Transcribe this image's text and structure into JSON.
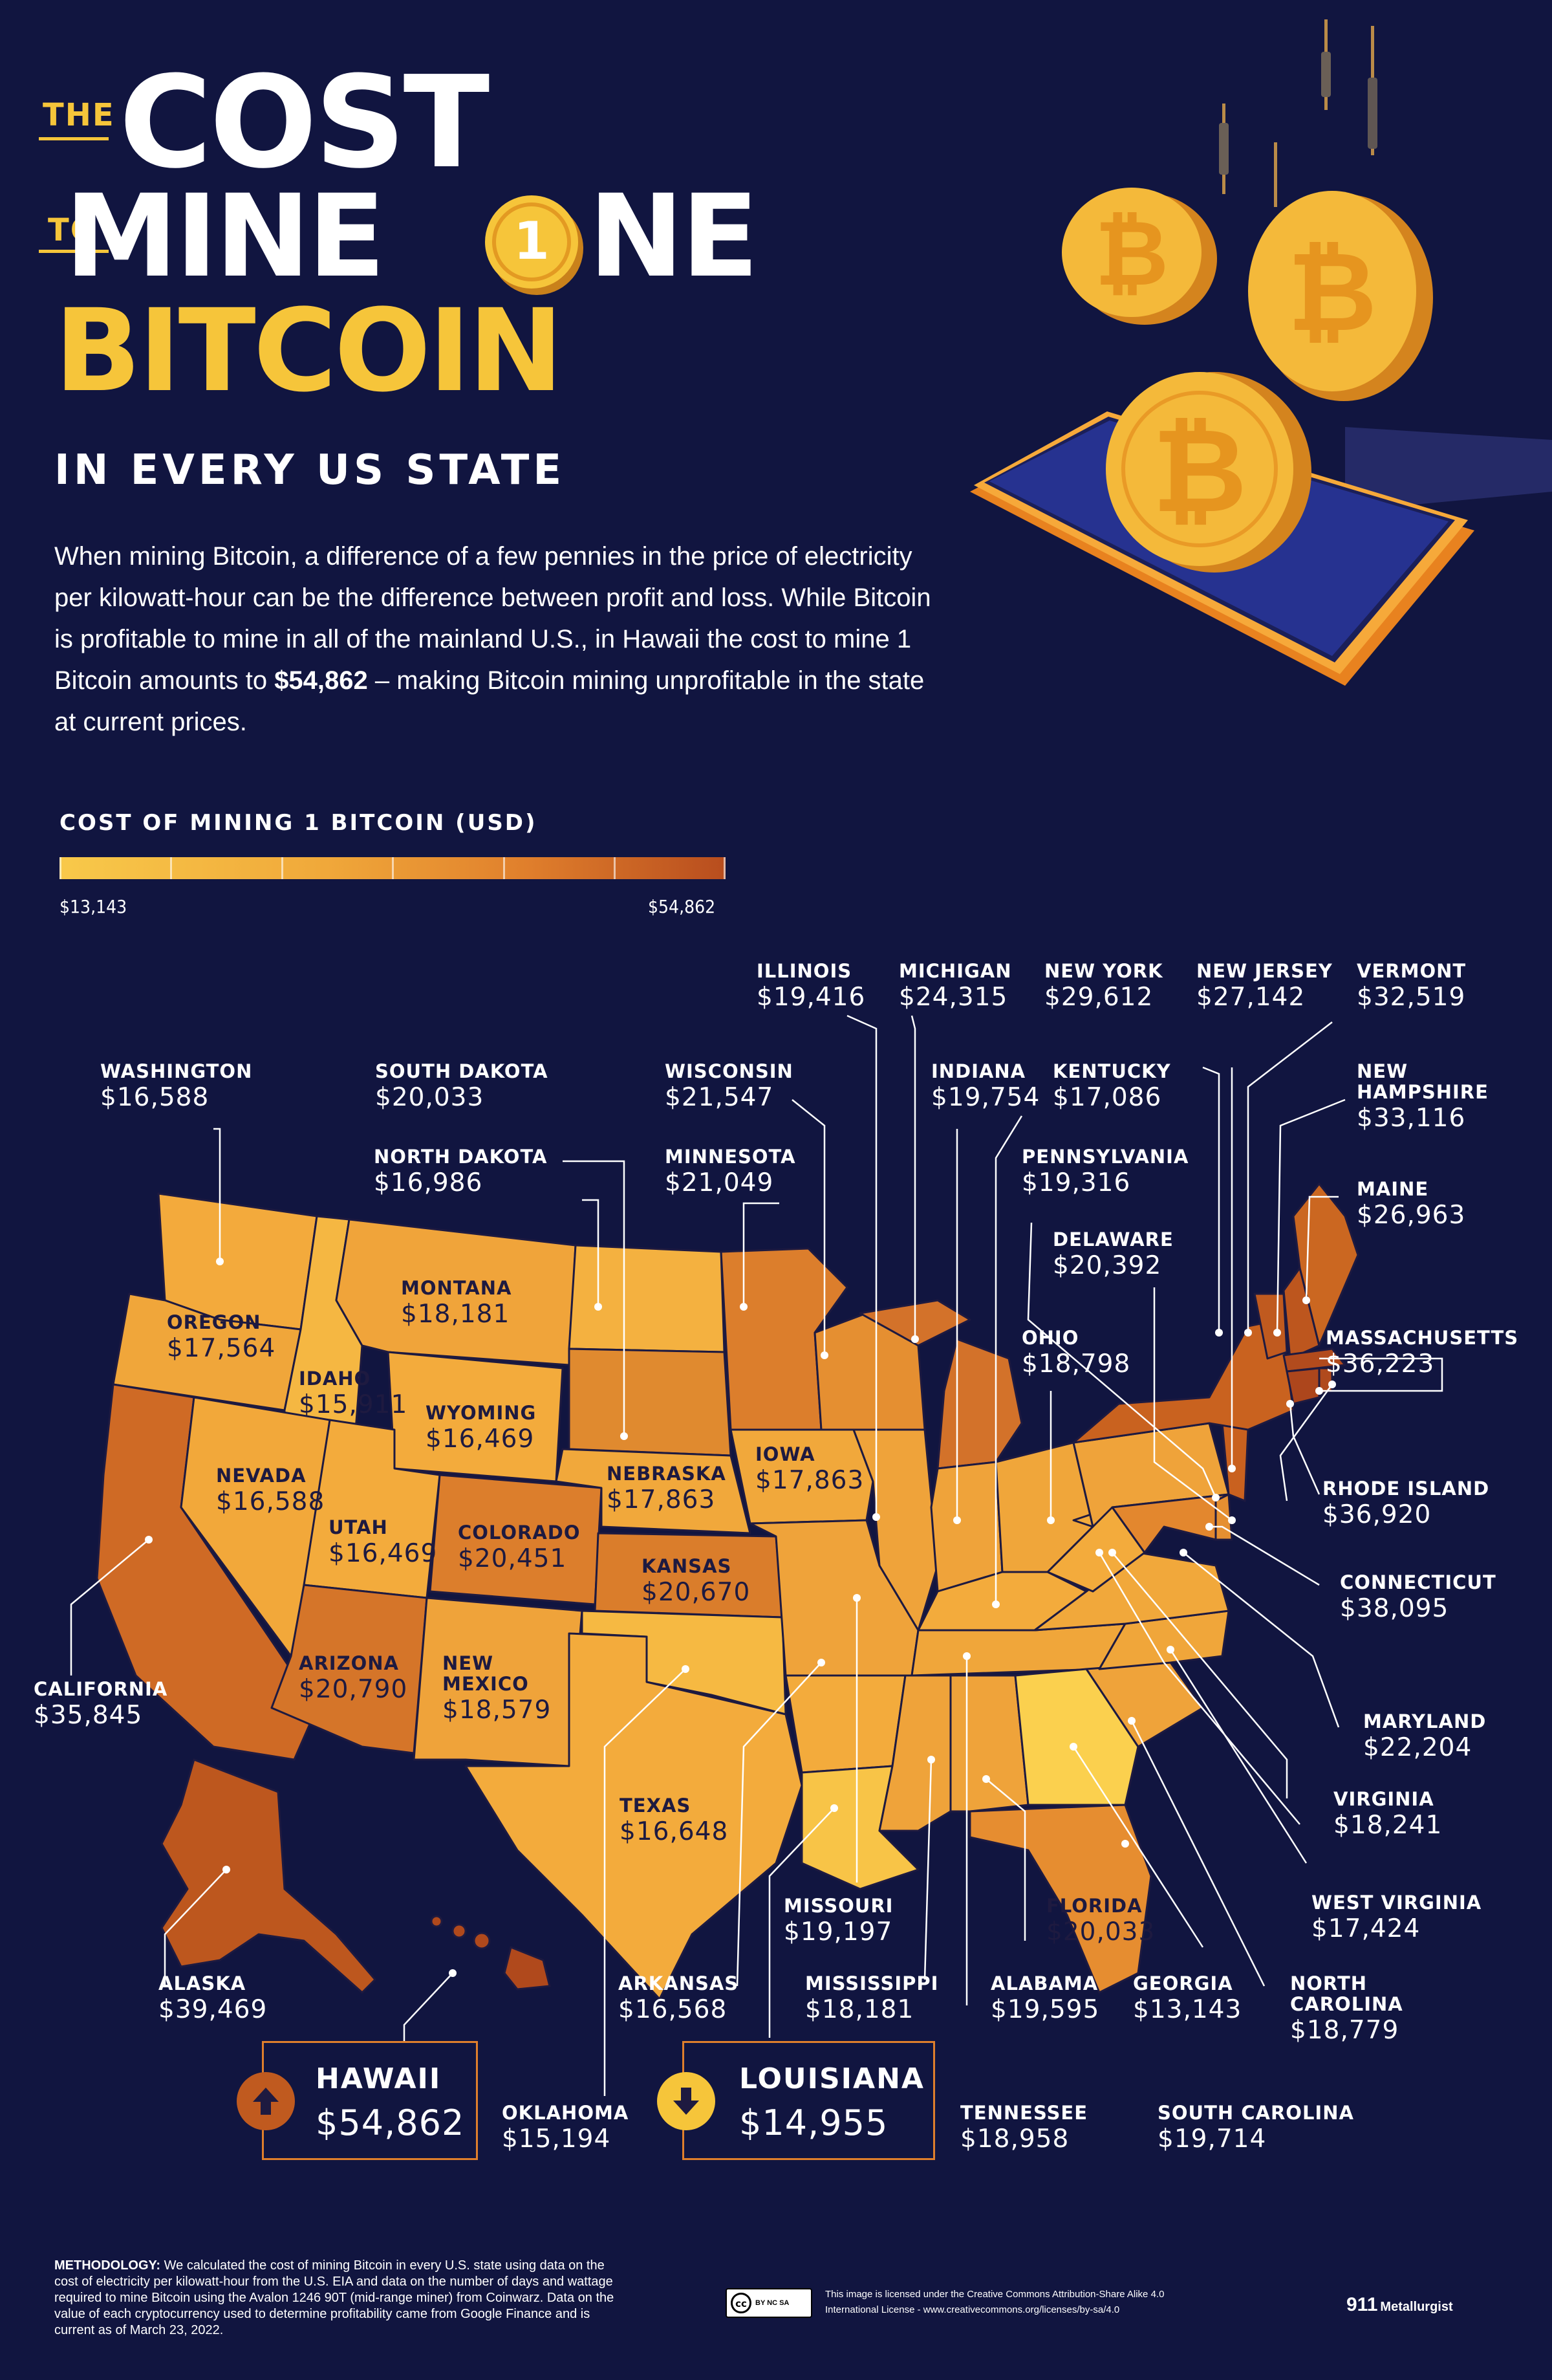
{
  "title": {
    "the": "THE",
    "cost": "COST",
    "to": "TO",
    "mine": "MINE",
    "one_coin_digit": "1",
    "one_rest": "NE",
    "bitcoin": "BITCOIN",
    "subtitle": "IN EVERY US STATE"
  },
  "intro": {
    "text_before": "When mining Bitcoin, a difference of a few pennies in the price of electricity per kilowatt-hour can be the difference between profit and loss. While Bitcoin is profitable to mine in all of the mainland U.S., in Hawaii the cost to mine 1 Bitcoin amounts to ",
    "highlight": "$54,862",
    "text_after": " – making Bitcoin mining unprofitable in the state at current prices."
  },
  "legend": {
    "title": "COST OF MINING 1 BITCOIN (USD)",
    "min_label": "$13,143",
    "max_label": "$54,862",
    "min": 13143,
    "max": 54862
  },
  "states": [
    {
      "name": "WASHINGTON",
      "value": "$16,588"
    },
    {
      "name": "OREGON",
      "value": "$17,564"
    },
    {
      "name": "CALIFORNIA",
      "value": "$35,845"
    },
    {
      "name": "IDAHO",
      "value": "$15,911"
    },
    {
      "name": "NEVADA",
      "value": "$16,588"
    },
    {
      "name": "MONTANA",
      "value": "$18,181"
    },
    {
      "name": "WYOMING",
      "value": "$16,469"
    },
    {
      "name": "UTAH",
      "value": "$16,469"
    },
    {
      "name": "ARIZONA",
      "value": "$20,790"
    },
    {
      "name": "COLORADO",
      "value": "$20,451"
    },
    {
      "name": "NEW\nMEXICO",
      "value": "$18,579"
    },
    {
      "name": "NORTH DAKOTA",
      "value": "$16,986"
    },
    {
      "name": "SOUTH DAKOTA",
      "value": "$20,033"
    },
    {
      "name": "NEBRASKA",
      "value": "$17,863"
    },
    {
      "name": "KANSAS",
      "value": "$20,670"
    },
    {
      "name": "OKLAHOMA",
      "value": "$15,194"
    },
    {
      "name": "TEXAS",
      "value": "$16,648"
    },
    {
      "name": "MINNESOTA",
      "value": "$21,049"
    },
    {
      "name": "IOWA",
      "value": "$17,863"
    },
    {
      "name": "MISSOURI",
      "value": "$19,197"
    },
    {
      "name": "ARKANSAS",
      "value": "$16,568"
    },
    {
      "name": "LOUISIANA",
      "value": "$14,955"
    },
    {
      "name": "WISCONSIN",
      "value": "$21,547"
    },
    {
      "name": "ILLINOIS",
      "value": "$19,416"
    },
    {
      "name": "MICHIGAN",
      "value": "$24,315"
    },
    {
      "name": "INDIANA",
      "value": "$19,754"
    },
    {
      "name": "KENTUCKY",
      "value": "$17,086"
    },
    {
      "name": "TENNESSEE",
      "value": "$18,958"
    },
    {
      "name": "MISSISSIPPI",
      "value": "$18,181"
    },
    {
      "name": "ALABAMA",
      "value": "$19,595"
    },
    {
      "name": "GEORGIA",
      "value": "$13,143"
    },
    {
      "name": "FLORIDA",
      "value": "$20,033"
    },
    {
      "name": "OHIO",
      "value": "$18,798"
    },
    {
      "name": "PENNSYLVANIA",
      "value": "$19,316"
    },
    {
      "name": "NEW YORK",
      "value": "$29,612"
    },
    {
      "name": "NEW JERSEY",
      "value": "$27,142"
    },
    {
      "name": "VERMONT",
      "value": "$32,519"
    },
    {
      "name": "NEW\nHAMPSHIRE",
      "value": "$33,116"
    },
    {
      "name": "MAINE",
      "value": "$26,963"
    },
    {
      "name": "MASSACHUSETTS",
      "value": "$36,223"
    },
    {
      "name": "RHODE ISLAND",
      "value": "$36,920"
    },
    {
      "name": "CONNECTICUT",
      "value": "$38,095"
    },
    {
      "name": "DELAWARE",
      "value": "$20,392"
    },
    {
      "name": "MARYLAND",
      "value": "$22,204"
    },
    {
      "name": "VIRGINIA",
      "value": "$18,241"
    },
    {
      "name": "WEST VIRGINIA",
      "value": "$17,424"
    },
    {
      "name": "NORTH\nCAROLINA",
      "value": "$18,779"
    },
    {
      "name": "SOUTH CAROLINA",
      "value": "$19,714"
    },
    {
      "name": "ALASKA",
      "value": "$39,469"
    },
    {
      "name": "HAWAII",
      "value": "$54,862"
    }
  ],
  "callouts": {
    "hawaii": {
      "name": "HAWAII",
      "value": "$54,862",
      "direction": "up",
      "color": "#c05a1f"
    },
    "louisiana": {
      "name": "LOUISIANA",
      "value": "$14,955",
      "direction": "down",
      "color": "#f6c53a"
    }
  },
  "footer": {
    "methodology_label": "METHODOLOGY:",
    "methodology_text": " We calculated the cost of mining Bitcoin in every U.S. state using data on the cost of electricity per kilowatt-hour from the U.S. EIA and data on the number of days and wattage required to mine Bitcoin using the Avalon 1246 90T (mid-range miner) from Coinwarz. Data on the value of each cryptocurrency used to determine profitability came from Google Finance and is current as of March 23, 2022.",
    "license_text": "This image is licensed under the Creative Commons Attribution-Share Alike 4.0 International License - www.creativecommons.org/licenses/by-sa/4.0",
    "cc_badge": "cc",
    "cc_terms": "BY NC SA",
    "brand_number": "911",
    "brand_name": "Metallurgist"
  },
  "colors": {
    "background": "#111540",
    "gold": "#f6c53a",
    "low": "#f8c94a",
    "high": "#b84d1e",
    "state_border": "#1e1a40"
  }
}
